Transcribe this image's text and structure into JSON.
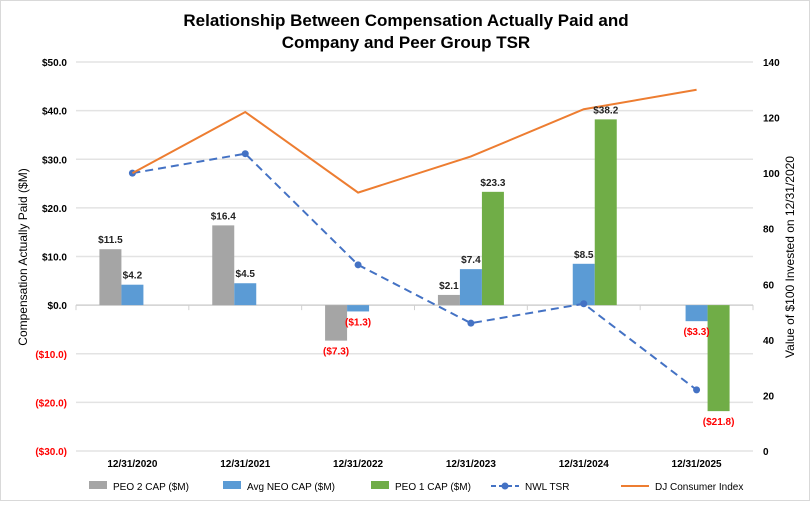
{
  "chart_data": {
    "type": "bar",
    "title": [
      "Relationship Between Compensation Actually Paid and",
      "Company and Peer Group TSR"
    ],
    "ylabel": "Compensation Actually Paid ($M)",
    "ylabel_right": "Value of $100 Invested on 12/31/2020",
    "ylim": [
      -30,
      50
    ],
    "ylim_right": [
      0,
      140
    ],
    "yticks": [
      {
        "v": 50,
        "label": "$50.0"
      },
      {
        "v": 40,
        "label": "$40.0"
      },
      {
        "v": 30,
        "label": "$30.0"
      },
      {
        "v": 20,
        "label": "$20.0"
      },
      {
        "v": 10,
        "label": "$10.0"
      },
      {
        "v": 0,
        "label": "$0.0"
      },
      {
        "v": -10,
        "label": "($10.0)"
      },
      {
        "v": -20,
        "label": "($20.0)"
      },
      {
        "v": -30,
        "label": "($30.0)"
      }
    ],
    "yticks_right": [
      "0",
      "20",
      "40",
      "60",
      "80",
      "100",
      "120",
      "140"
    ],
    "grid": true,
    "legend_position": "bottom",
    "categories": [
      "12/31/2020",
      "12/31/2021",
      "12/31/2022",
      "12/31/2023",
      "12/31/2024",
      "12/31/2025"
    ],
    "bar_series": [
      {
        "name": "PEO 2 CAP ($M)",
        "color": "#a5a5a5",
        "values": [
          11.5,
          16.4,
          -7.3,
          2.1,
          null,
          null
        ],
        "labels": [
          "$11.5",
          "$16.4",
          "($7.3)",
          "$2.1",
          null,
          null
        ]
      },
      {
        "name": "Avg NEO CAP ($M)",
        "color": "#5b9bd5",
        "values": [
          4.2,
          4.5,
          -1.3,
          7.4,
          8.5,
          -3.3
        ],
        "labels": [
          "$4.2",
          "$4.5",
          "($1.3)",
          "$7.4",
          "$8.5",
          "($3.3)"
        ]
      },
      {
        "name": "PEO 1 CAP ($M)",
        "color": "#70ad47",
        "values": [
          null,
          null,
          null,
          23.3,
          38.2,
          -21.8
        ],
        "labels": [
          null,
          null,
          null,
          "$23.3",
          "$38.2",
          "($21.8)"
        ]
      }
    ],
    "line_series": [
      {
        "name": "NWL TSR",
        "color": "#4472c4",
        "style": "dashed",
        "marker": "circle",
        "axis": "right",
        "values": [
          100,
          107,
          67,
          46,
          53,
          22
        ]
      },
      {
        "name": "DJ Consumer Index",
        "color": "#ed7d31",
        "style": "solid",
        "marker": "none",
        "axis": "right",
        "values": [
          100,
          122,
          93,
          106,
          123,
          130
        ]
      }
    ],
    "negative_label_color": "#ff0000"
  }
}
